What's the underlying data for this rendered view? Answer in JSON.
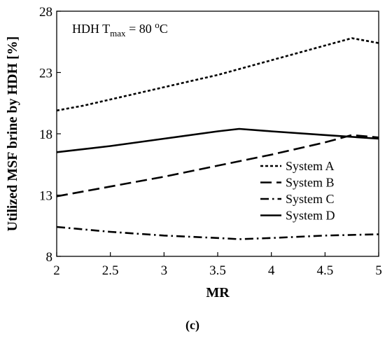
{
  "chart_data": {
    "type": "line",
    "xlabel": "MR",
    "ylabel": "Utilized MSF brine by HDH [%]",
    "xlim": [
      2,
      5
    ],
    "ylim": [
      8,
      28
    ],
    "xticks": [
      2,
      2.5,
      3,
      3.5,
      4,
      4.5,
      5
    ],
    "xtick_labels": [
      "2",
      "2.5",
      "3",
      "3.5",
      "4",
      "4.5",
      "5"
    ],
    "yticks": [
      8,
      13,
      18,
      23,
      28
    ],
    "ytick_labels": [
      "8",
      "13",
      "18",
      "23",
      "28"
    ],
    "grid": false,
    "legend_position": "center-right",
    "annotation": {
      "prefix": "HDH T",
      "subscript": "max",
      "equals": " = 80 ",
      "superscript": "o",
      "unit": "C"
    },
    "caption": "(c)",
    "series": [
      {
        "name": "System A",
        "dash": "dotted",
        "x": [
          2,
          2.25,
          2.5,
          2.75,
          3,
          3.25,
          3.5,
          3.75,
          4,
          4.25,
          4.5,
          4.75,
          5
        ],
        "y": [
          19.9,
          20.3,
          20.8,
          21.3,
          21.8,
          22.3,
          22.8,
          23.4,
          24.0,
          24.6,
          25.2,
          25.8,
          25.4
        ]
      },
      {
        "name": "System B",
        "dash": "dashed",
        "x": [
          2,
          2.5,
          3,
          3.5,
          4,
          4.5,
          4.75,
          5
        ],
        "y": [
          12.9,
          13.7,
          14.5,
          15.4,
          16.3,
          17.3,
          17.9,
          17.7
        ]
      },
      {
        "name": "System C",
        "dash": "dashdot",
        "x": [
          2,
          2.5,
          3,
          3.5,
          3.7,
          4,
          4.5,
          5
        ],
        "y": [
          10.4,
          10.0,
          9.7,
          9.5,
          9.4,
          9.5,
          9.7,
          9.8
        ]
      },
      {
        "name": "System D",
        "dash": "solid",
        "x": [
          2,
          2.5,
          3,
          3.5,
          3.7,
          4,
          4.5,
          5
        ],
        "y": [
          16.5,
          17.0,
          17.6,
          18.2,
          18.4,
          18.2,
          17.9,
          17.6
        ]
      }
    ]
  }
}
